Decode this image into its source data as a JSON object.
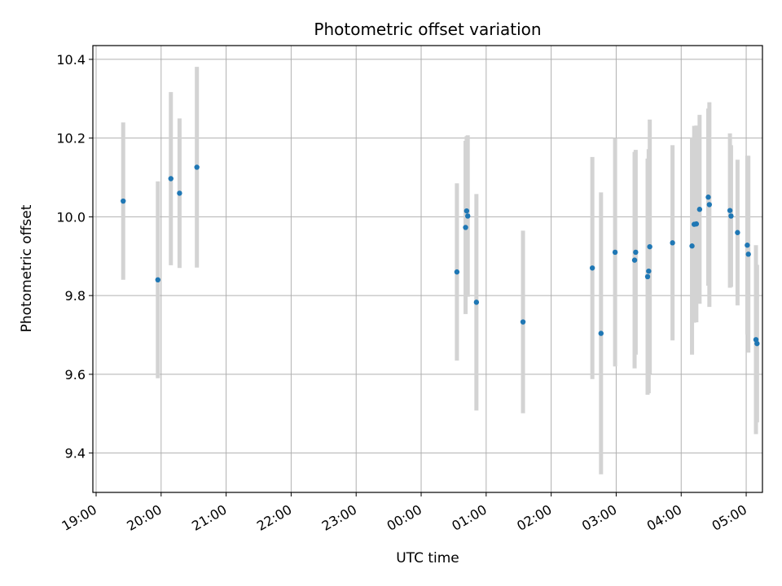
{
  "chart_data": {
    "type": "scatter",
    "title": "Photometric offset variation",
    "xlabel": "UTC time",
    "ylabel": "Photometric offset",
    "grid": true,
    "legend": "none",
    "xlim": [
      -0.05,
      10.25
    ],
    "ylim": [
      9.3,
      10.435
    ],
    "x_tick_values": [
      0,
      1,
      2,
      3,
      4,
      5,
      6,
      7,
      8,
      9,
      10
    ],
    "x_tick_labels": [
      "19:00",
      "20:00",
      "21:00",
      "22:00",
      "23:00",
      "00:00",
      "01:00",
      "02:00",
      "03:00",
      "04:00",
      "05:00"
    ],
    "y_tick_values": [
      9.4,
      9.6,
      9.8,
      10.0,
      10.2,
      10.4
    ],
    "y_tick_labels": [
      "9.4",
      "9.6",
      "9.8",
      "10.0",
      "10.2",
      "10.4"
    ],
    "colors": {
      "points": "#1f77b4",
      "errorbars": "#d3d3d3",
      "grid": "#b0b0b0"
    },
    "points": [
      {
        "t": "19:25",
        "y": 10.04,
        "err": 0.2
      },
      {
        "t": "19:57",
        "y": 9.84,
        "err": 0.25
      },
      {
        "t": "20:09",
        "y": 10.097,
        "err": 0.22
      },
      {
        "t": "20:17",
        "y": 10.06,
        "err": 0.19
      },
      {
        "t": "20:33",
        "y": 10.126,
        "err": 0.255
      },
      {
        "t": "00:33",
        "y": 9.86,
        "err": 0.225
      },
      {
        "t": "00:41",
        "y": 9.973,
        "err": 0.22
      },
      {
        "t": "00:42",
        "y": 10.015,
        "err": 0.19
      },
      {
        "t": "00:43",
        "y": 10.002,
        "err": 0.205
      },
      {
        "t": "00:51",
        "y": 9.783,
        "err": 0.275
      },
      {
        "t": "01:34",
        "y": 9.733,
        "err": 0.232
      },
      {
        "t": "02:38",
        "y": 9.87,
        "err": 0.282
      },
      {
        "t": "02:46",
        "y": 9.704,
        "err": 0.358
      },
      {
        "t": "02:59",
        "y": 9.91,
        "err": 0.29
      },
      {
        "t": "03:17",
        "y": 9.89,
        "err": 0.275
      },
      {
        "t": "03:18",
        "y": 9.91,
        "err": 0.26
      },
      {
        "t": "03:29",
        "y": 9.848,
        "err": 0.3
      },
      {
        "t": "03:30",
        "y": 9.862,
        "err": 0.31
      },
      {
        "t": "03:31",
        "y": 9.924,
        "err": 0.323
      },
      {
        "t": "03:52",
        "y": 9.934,
        "err": 0.248
      },
      {
        "t": "04:10",
        "y": 9.926,
        "err": 0.276
      },
      {
        "t": "04:12",
        "y": 9.981,
        "err": 0.25
      },
      {
        "t": "04:14",
        "y": 9.982,
        "err": 0.25
      },
      {
        "t": "04:17",
        "y": 10.019,
        "err": 0.24
      },
      {
        "t": "04:25",
        "y": 10.05,
        "err": 0.225
      },
      {
        "t": "04:26",
        "y": 10.031,
        "err": 0.26
      },
      {
        "t": "04:45",
        "y": 10.016,
        "err": 0.196
      },
      {
        "t": "04:46",
        "y": 10.002,
        "err": 0.18
      },
      {
        "t": "04:52",
        "y": 9.96,
        "err": 0.185
      },
      {
        "t": "05:01",
        "y": 9.928,
        "err": 0.227
      },
      {
        "t": "05:02",
        "y": 9.905,
        "err": 0.25
      },
      {
        "t": "05:09",
        "y": 9.688,
        "err": 0.24
      },
      {
        "t": "05:10",
        "y": 9.678,
        "err": 0.2
      }
    ]
  }
}
